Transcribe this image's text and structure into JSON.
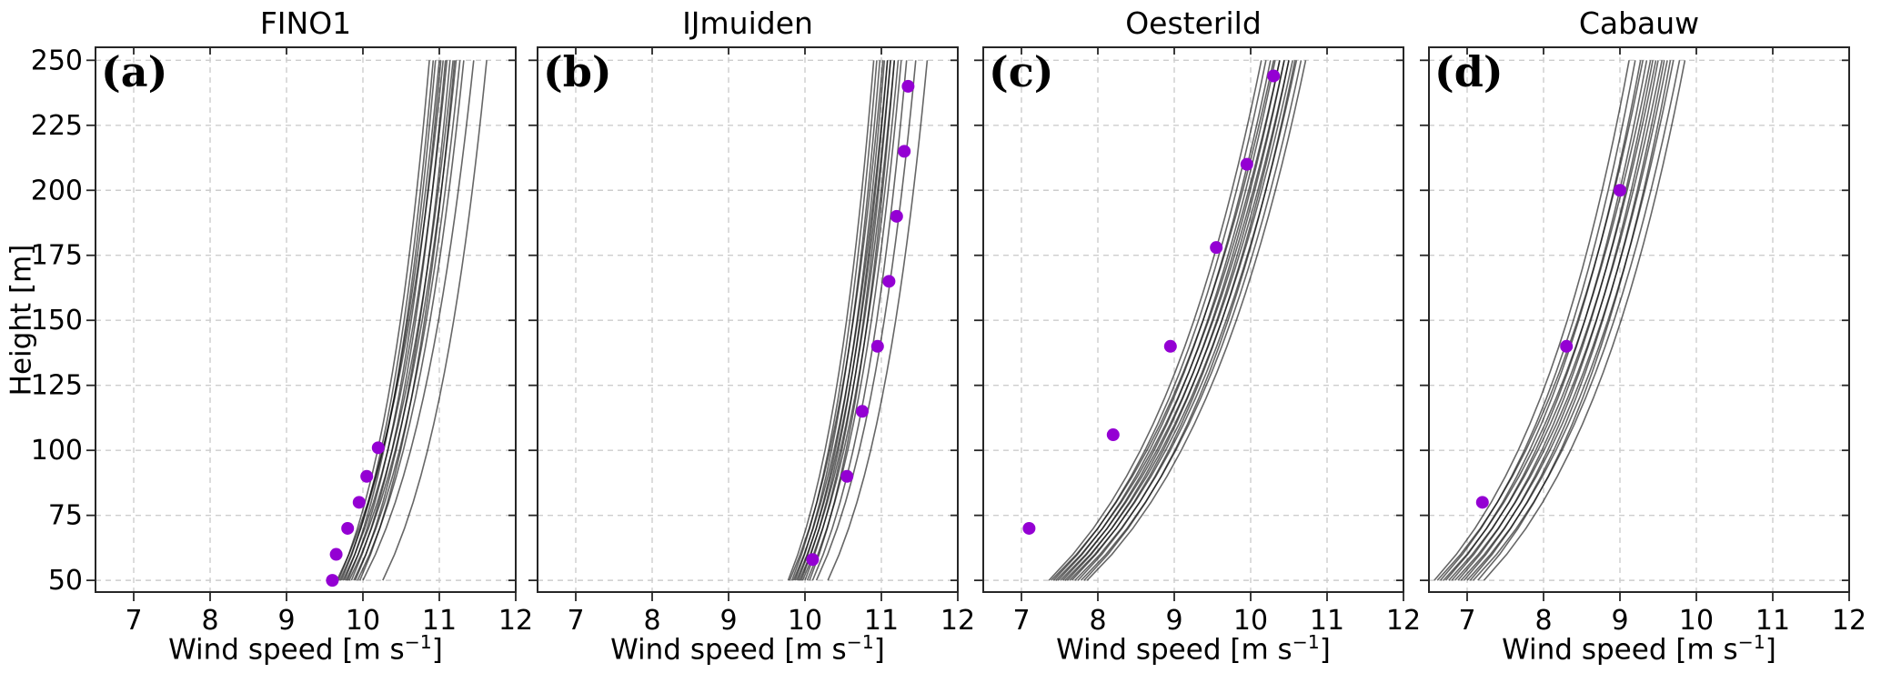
{
  "figure": {
    "background": "#ffffff",
    "ylabel": "Height [m]",
    "xlabel_pre": "Wind speed [m s",
    "xlabel_sup": "−1",
    "xlabel_post": "]"
  },
  "style": {
    "observation_color": "#9400D3",
    "ensemble_line_color": "#000000",
    "ensemble_line_opacity": 0.6,
    "grid_color": "#cdcdcd",
    "frame_color": "#262626"
  },
  "chart_data": [
    {
      "type": "line",
      "title": "FINO1",
      "panel_label": "(a)",
      "xlabel": "Wind speed [m s⁻¹]",
      "ylabel": "Height [m]",
      "show_yticklabels": true,
      "xlim": [
        6.5,
        12
      ],
      "ylim": [
        45.5,
        255
      ],
      "xticks": [
        7,
        8,
        9,
        10,
        11,
        12
      ],
      "yticks": [
        50,
        75,
        100,
        125,
        150,
        175,
        200,
        225,
        250
      ],
      "grid": true,
      "legend": "none",
      "observations": {
        "name": "observed wind speed profile",
        "marker": "circle",
        "color": "#9400D3",
        "points_u_z": [
          [
            9.6,
            50
          ],
          [
            9.65,
            60
          ],
          [
            9.8,
            70
          ],
          [
            9.95,
            80
          ],
          [
            10.05,
            90
          ],
          [
            10.2,
            101
          ]
        ]
      },
      "ensemble": {
        "name": "simulated wind profiles (ensemble members)",
        "color": "#000000",
        "opacity": 0.6,
        "height_range_m": [
          50,
          250
        ],
        "interpolation": "logarithmic",
        "members_u50_u250": [
          [
            9.66,
            11.05
          ],
          [
            9.68,
            10.87
          ],
          [
            9.7,
            11.0
          ],
          [
            9.72,
            10.92
          ],
          [
            9.74,
            11.1
          ],
          [
            9.76,
            10.95
          ],
          [
            9.78,
            11.18
          ],
          [
            9.8,
            11.02
          ],
          [
            9.82,
            11.22
          ],
          [
            9.85,
            11.08
          ],
          [
            9.88,
            11.27
          ],
          [
            9.9,
            11.14
          ],
          [
            9.93,
            11.32
          ],
          [
            9.96,
            11.2
          ],
          [
            10.0,
            11.45
          ],
          [
            10.26,
            11.62
          ]
        ]
      }
    },
    {
      "type": "line",
      "title": "IJmuiden",
      "panel_label": "(b)",
      "xlabel": "Wind speed [m s⁻¹]",
      "ylabel": "",
      "show_yticklabels": false,
      "xlim": [
        6.5,
        12
      ],
      "ylim": [
        45.5,
        255
      ],
      "xticks": [
        7,
        8,
        9,
        10,
        11,
        12
      ],
      "yticks": [
        50,
        75,
        100,
        125,
        150,
        175,
        200,
        225,
        250
      ],
      "grid": true,
      "legend": "none",
      "observations": {
        "name": "observed wind speed profile",
        "marker": "circle",
        "color": "#9400D3",
        "points_u_z": [
          [
            10.1,
            58
          ],
          [
            10.55,
            90
          ],
          [
            10.75,
            115
          ],
          [
            10.95,
            140
          ],
          [
            11.1,
            165
          ],
          [
            11.2,
            190
          ],
          [
            11.3,
            215
          ],
          [
            11.35,
            240
          ]
        ]
      },
      "ensemble": {
        "name": "simulated wind profiles (ensemble members)",
        "color": "#000000",
        "opacity": 0.6,
        "height_range_m": [
          50,
          250
        ],
        "interpolation": "logarithmic",
        "members_u50_u250": [
          [
            9.78,
            10.9
          ],
          [
            9.8,
            11.02
          ],
          [
            9.83,
            10.94
          ],
          [
            9.85,
            11.08
          ],
          [
            9.87,
            10.98
          ],
          [
            9.89,
            11.12
          ],
          [
            9.91,
            11.04
          ],
          [
            9.93,
            11.17
          ],
          [
            9.95,
            11.08
          ],
          [
            9.97,
            11.22
          ],
          [
            10.0,
            11.12
          ],
          [
            10.03,
            11.26
          ],
          [
            10.06,
            11.17
          ],
          [
            10.1,
            11.33
          ],
          [
            10.15,
            11.45
          ],
          [
            10.3,
            11.6
          ]
        ]
      }
    },
    {
      "type": "line",
      "title": "Oesterild",
      "panel_label": "(c)",
      "xlabel": "Wind speed [m s⁻¹]",
      "ylabel": "",
      "show_yticklabels": false,
      "xlim": [
        6.5,
        12
      ],
      "ylim": [
        45.5,
        255
      ],
      "xticks": [
        7,
        8,
        9,
        10,
        11,
        12
      ],
      "yticks": [
        50,
        75,
        100,
        125,
        150,
        175,
        200,
        225,
        250
      ],
      "grid": true,
      "legend": "none",
      "observations": {
        "name": "observed wind speed profile",
        "marker": "circle",
        "color": "#9400D3",
        "points_u_z": [
          [
            7.1,
            70
          ],
          [
            8.2,
            106
          ],
          [
            8.95,
            140
          ],
          [
            9.55,
            178
          ],
          [
            9.95,
            210
          ],
          [
            10.3,
            244
          ]
        ]
      },
      "ensemble": {
        "name": "simulated wind profiles (ensemble members)",
        "color": "#000000",
        "opacity": 0.6,
        "height_range_m": [
          50,
          250
        ],
        "interpolation": "logarithmic",
        "members_u50_u250": [
          [
            7.36,
            10.14
          ],
          [
            7.39,
            10.3
          ],
          [
            7.42,
            10.2
          ],
          [
            7.45,
            10.38
          ],
          [
            7.48,
            10.26
          ],
          [
            7.51,
            10.44
          ],
          [
            7.54,
            10.32
          ],
          [
            7.57,
            10.5
          ],
          [
            7.6,
            10.38
          ],
          [
            7.63,
            10.55
          ],
          [
            7.66,
            10.44
          ],
          [
            7.7,
            10.6
          ],
          [
            7.74,
            10.5
          ],
          [
            7.78,
            10.66
          ],
          [
            7.82,
            10.58
          ],
          [
            7.86,
            10.72
          ]
        ]
      }
    },
    {
      "type": "line",
      "title": "Cabauw",
      "panel_label": "(d)",
      "xlabel": "Wind speed [m s⁻¹]",
      "ylabel": "",
      "show_yticklabels": false,
      "xlim": [
        6.5,
        12
      ],
      "ylim": [
        45.5,
        255
      ],
      "xticks": [
        7,
        8,
        9,
        10,
        11,
        12
      ],
      "yticks": [
        50,
        75,
        100,
        125,
        150,
        175,
        200,
        225,
        250
      ],
      "grid": true,
      "legend": "none",
      "observations": {
        "name": "observed wind speed profile",
        "marker": "circle",
        "color": "#9400D3",
        "points_u_z": [
          [
            7.2,
            80
          ],
          [
            8.3,
            140
          ],
          [
            9.0,
            200
          ]
        ]
      },
      "ensemble": {
        "name": "simulated wind profiles (ensemble members)",
        "color": "#000000",
        "opacity": 0.6,
        "height_range_m": [
          50,
          250
        ],
        "interpolation": "logarithmic",
        "members_u50_u250": [
          [
            6.57,
            9.12
          ],
          [
            6.61,
            9.3
          ],
          [
            6.65,
            9.2
          ],
          [
            6.69,
            9.4
          ],
          [
            6.72,
            9.27
          ],
          [
            6.76,
            9.47
          ],
          [
            6.8,
            9.35
          ],
          [
            6.84,
            9.55
          ],
          [
            6.88,
            9.43
          ],
          [
            6.92,
            9.62
          ],
          [
            6.96,
            9.5
          ],
          [
            7.0,
            9.7
          ],
          [
            7.04,
            9.58
          ],
          [
            7.08,
            9.78
          ],
          [
            7.14,
            9.66
          ],
          [
            7.22,
            9.85
          ]
        ]
      }
    }
  ]
}
